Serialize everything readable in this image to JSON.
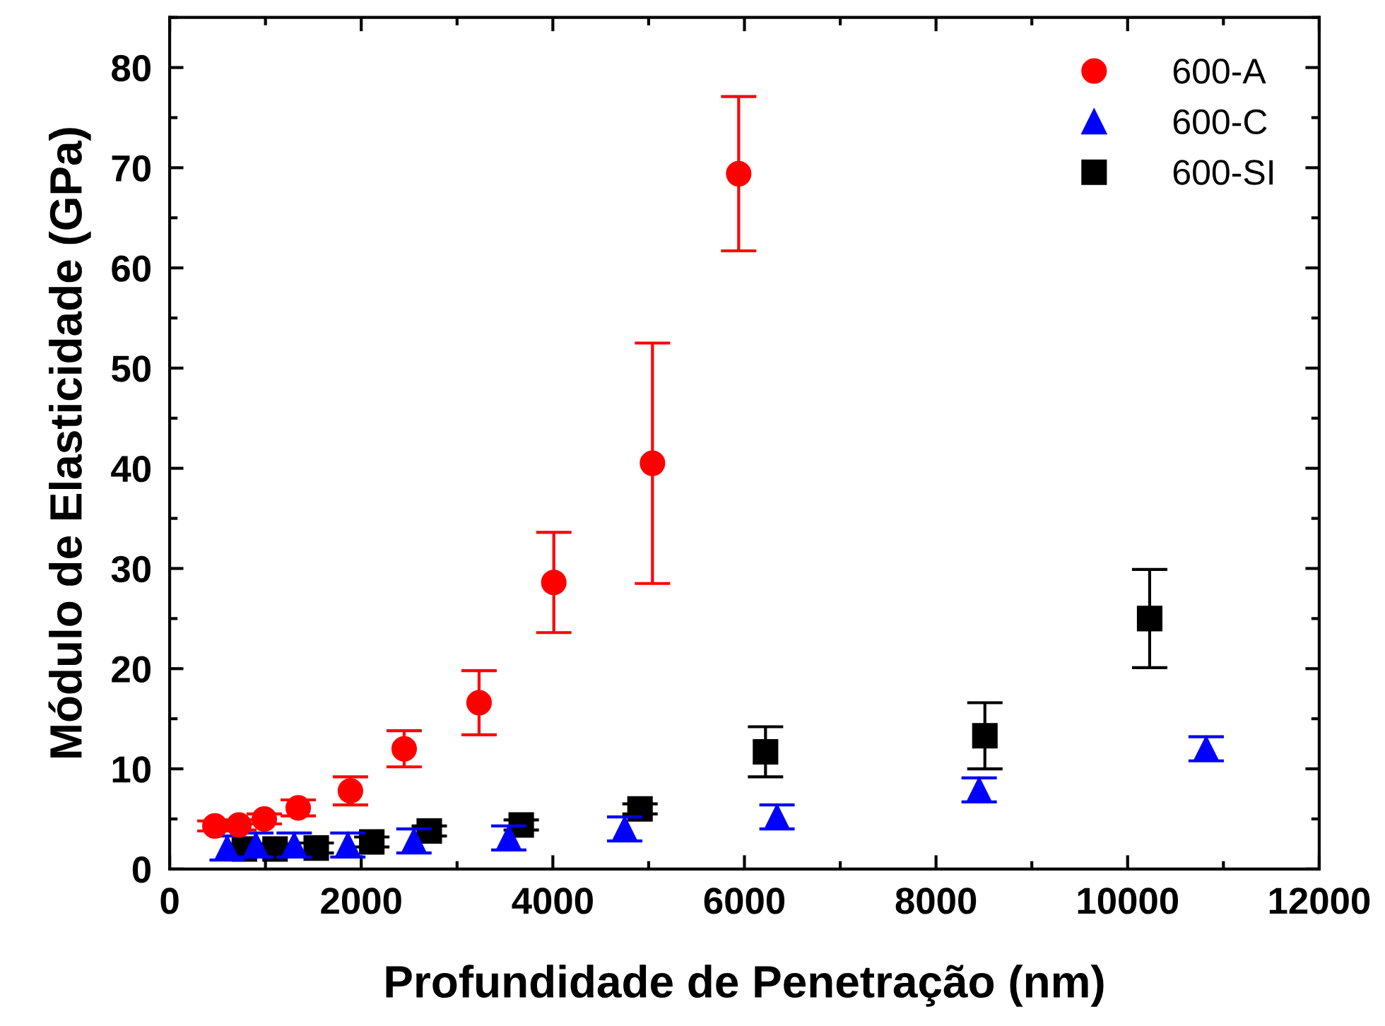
{
  "chart_data": {
    "type": "scatter",
    "xlabel": "Profundidade de Penetração (nm)",
    "ylabel": "Módulo de Elasticidade (GPa)",
    "xlim": [
      0,
      12000
    ],
    "ylim": [
      0,
      85
    ],
    "xticks": [
      0,
      2000,
      4000,
      6000,
      8000,
      10000,
      12000
    ],
    "yticks": [
      0,
      10,
      20,
      30,
      40,
      50,
      60,
      70,
      80
    ],
    "grid": false,
    "legend": "top right",
    "series": [
      {
        "name": "600-A",
        "color": "#ff0000",
        "marker": "circle",
        "x": [
          472,
          723,
          988,
          1342,
          1887,
          2448,
          3230,
          4010,
          5040,
          5940
        ],
        "values": [
          4.3,
          4.4,
          5.0,
          6.1,
          7.8,
          12.0,
          16.6,
          28.6,
          40.5,
          69.4
        ],
        "errors": [
          0.5,
          0.5,
          0.5,
          0.8,
          1.4,
          1.8,
          3.2,
          5.0,
          12.0,
          7.7
        ]
      },
      {
        "name": "600-C",
        "color": "#0000ff",
        "marker": "triangle",
        "x": [
          600,
          900,
          1300,
          1860,
          2550,
          3540,
          4750,
          6340,
          8450,
          10820
        ],
        "values": [
          2.1,
          2.4,
          2.4,
          2.4,
          2.8,
          3.1,
          4.0,
          5.2,
          7.9,
          12.0
        ],
        "errors": [
          1.2,
          1.2,
          1.2,
          1.2,
          1.2,
          1.2,
          1.2,
          1.2,
          1.2,
          1.2
        ]
      },
      {
        "name": "600-SI",
        "color": "#000000",
        "marker": "square",
        "x": [
          780,
          1100,
          1530,
          2110,
          2710,
          3670,
          4910,
          6220,
          8510,
          10230
        ],
        "values": [
          2.0,
          2.0,
          2.1,
          2.7,
          3.8,
          4.4,
          6.0,
          11.7,
          13.3,
          25.0
        ],
        "errors": [
          0.5,
          0.5,
          0.5,
          0.5,
          0.5,
          0.5,
          0.5,
          2.5,
          3.3,
          4.9
        ]
      }
    ]
  }
}
